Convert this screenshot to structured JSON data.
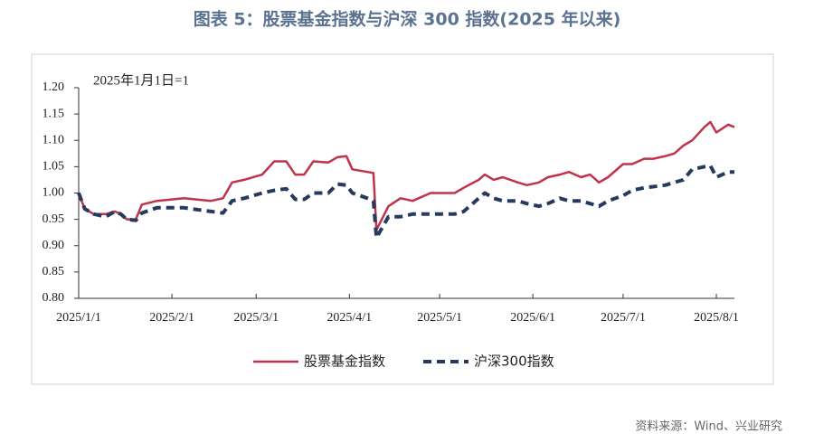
{
  "chart_data": {
    "type": "line",
    "title": "图表 5：股票基金指数与沪深 300 指数(2025 年以来)",
    "annotation": "2025年1月1日=1",
    "source": "资料来源：Wind、兴业研究",
    "x": [
      "2025-01-01",
      "2025-01-03",
      "2025-01-06",
      "2025-01-10",
      "2025-01-13",
      "2025-01-15",
      "2025-01-17",
      "2025-01-20",
      "2025-01-22",
      "2025-01-27",
      "2025-02-05",
      "2025-02-14",
      "2025-02-18",
      "2025-02-21",
      "2025-02-25",
      "2025-03-03",
      "2025-03-07",
      "2025-03-11",
      "2025-03-14",
      "2025-03-17",
      "2025-03-20",
      "2025-03-25",
      "2025-03-28",
      "2025-03-31",
      "2025-04-02",
      "2025-04-07",
      "2025-04-09",
      "2025-04-10",
      "2025-04-14",
      "2025-04-18",
      "2025-04-22",
      "2025-04-28",
      "2025-05-06",
      "2025-05-09",
      "2025-05-14",
      "2025-05-16",
      "2025-05-19",
      "2025-05-22",
      "2025-05-27",
      "2025-05-30",
      "2025-06-03",
      "2025-06-06",
      "2025-06-10",
      "2025-06-13",
      "2025-06-17",
      "2025-06-20",
      "2025-06-23",
      "2025-06-26",
      "2025-07-01",
      "2025-07-04",
      "2025-07-08",
      "2025-07-11",
      "2025-07-15",
      "2025-07-18",
      "2025-07-21",
      "2025-07-24",
      "2025-07-28",
      "2025-07-30",
      "2025-08-01",
      "2025-08-05",
      "2025-08-07"
    ],
    "series": [
      {
        "name": "股票基金指数",
        "color": "#c0334a",
        "dash": false,
        "values": [
          1.0,
          0.97,
          0.96,
          0.96,
          0.965,
          0.96,
          0.95,
          0.95,
          0.978,
          0.985,
          0.99,
          0.985,
          0.99,
          1.02,
          1.025,
          1.035,
          1.06,
          1.06,
          1.035,
          1.035,
          1.06,
          1.058,
          1.068,
          1.07,
          1.045,
          1.04,
          1.038,
          0.93,
          0.975,
          0.99,
          0.985,
          1.0,
          1.0,
          1.01,
          1.025,
          1.035,
          1.025,
          1.03,
          1.02,
          1.015,
          1.02,
          1.03,
          1.035,
          1.04,
          1.03,
          1.035,
          1.02,
          1.03,
          1.055,
          1.055,
          1.065,
          1.065,
          1.07,
          1.075,
          1.09,
          1.1,
          1.125,
          1.135,
          1.115,
          1.13,
          1.125
        ]
      },
      {
        "name": "沪深300指数",
        "color": "#263a5e",
        "dash": true,
        "values": [
          1.0,
          0.97,
          0.96,
          0.955,
          0.965,
          0.96,
          0.95,
          0.948,
          0.962,
          0.972,
          0.972,
          0.965,
          0.962,
          0.985,
          0.99,
          1.0,
          1.005,
          1.008,
          0.988,
          0.988,
          1.0,
          1.0,
          1.017,
          1.015,
          1.0,
          0.99,
          0.985,
          0.915,
          0.955,
          0.955,
          0.96,
          0.96,
          0.96,
          0.965,
          0.99,
          1.0,
          0.99,
          0.985,
          0.985,
          0.98,
          0.975,
          0.98,
          0.99,
          0.985,
          0.985,
          0.98,
          0.975,
          0.985,
          0.995,
          1.005,
          1.01,
          1.012,
          1.015,
          1.02,
          1.025,
          1.045,
          1.05,
          1.052,
          1.03,
          1.04,
          1.04
        ]
      }
    ],
    "xlim": [
      "2025-01-01",
      "2025-08-07"
    ],
    "xticks": [
      {
        "value": "2025-01-01",
        "label": "2025/1/1"
      },
      {
        "value": "2025-02-01",
        "label": "2025/2/1"
      },
      {
        "value": "2025-03-01",
        "label": "2025/3/1"
      },
      {
        "value": "2025-04-01",
        "label": "2025/4/1"
      },
      {
        "value": "2025-05-01",
        "label": "2025/5/1"
      },
      {
        "value": "2025-06-01",
        "label": "2025/6/1"
      },
      {
        "value": "2025-07-01",
        "label": "2025/7/1"
      },
      {
        "value": "2025-08-01",
        "label": "2025/8/1"
      }
    ],
    "ylim": [
      0.8,
      1.2
    ],
    "yticks": [
      {
        "value": 0.8,
        "label": "0.80"
      },
      {
        "value": 0.85,
        "label": "0.85"
      },
      {
        "value": 0.9,
        "label": "0.90"
      },
      {
        "value": 0.95,
        "label": "0.95"
      },
      {
        "value": 1.0,
        "label": "1.00"
      },
      {
        "value": 1.05,
        "label": "1.05"
      },
      {
        "value": 1.1,
        "label": "1.10"
      },
      {
        "value": 1.15,
        "label": "1.15"
      },
      {
        "value": 1.2,
        "label": "1.20"
      }
    ],
    "grid": false
  }
}
